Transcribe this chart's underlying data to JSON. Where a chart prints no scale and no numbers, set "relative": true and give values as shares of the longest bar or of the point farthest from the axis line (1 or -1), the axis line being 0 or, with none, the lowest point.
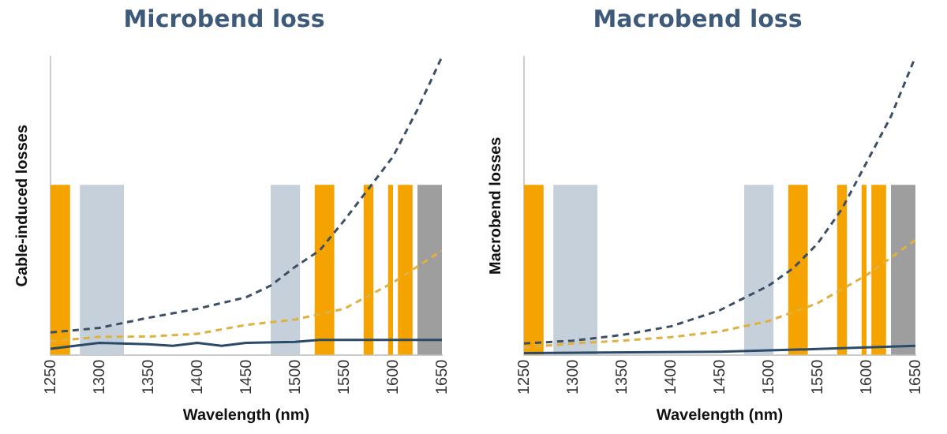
{
  "chart_data": [
    {
      "type": "line",
      "title": "Microbend loss",
      "xlabel": "Wavelength (nm)",
      "ylabel": "Cable-induced losses",
      "relative": true,
      "xlim": [
        1250,
        1650
      ],
      "xticks": [
        1250,
        1300,
        1350,
        1400,
        1450,
        1500,
        1550,
        1600,
        1650
      ],
      "marker": "none",
      "grid": false,
      "legend": false,
      "bands": [
        {
          "axis": "x",
          "from": 1250,
          "to": 1270,
          "color": "#f5a300"
        },
        {
          "axis": "x",
          "from": 1280,
          "to": 1325,
          "color": "#c5d0da"
        },
        {
          "axis": "x",
          "from": 1475,
          "to": 1505,
          "color": "#c5d0da"
        },
        {
          "axis": "x",
          "from": 1520,
          "to": 1540,
          "color": "#f5a300"
        },
        {
          "axis": "x",
          "from": 1570,
          "to": 1580,
          "color": "#f5a300"
        },
        {
          "axis": "x",
          "from": 1595,
          "to": 1600,
          "color": "#f5a300"
        },
        {
          "axis": "x",
          "from": 1605,
          "to": 1620,
          "color": "#f5a300"
        },
        {
          "axis": "x",
          "from": 1625,
          "to": 1650,
          "color": "#9e9e9e"
        }
      ],
      "series": [
        {
          "color": "#3d4f66",
          "line_style": "dashed",
          "x": [
            1250,
            1300,
            1350,
            1400,
            1450,
            1475,
            1500,
            1525,
            1550,
            1575,
            1600,
            1625,
            1650
          ],
          "values": [
            0.075,
            0.09,
            0.124,
            0.154,
            0.193,
            0.232,
            0.295,
            0.35,
            0.45,
            0.557,
            0.665,
            0.823,
            1
          ]
        },
        {
          "color": "#e0b040",
          "line_style": "dashed",
          "x": [
            1250,
            1300,
            1350,
            1400,
            1450,
            1500,
            1550,
            1600,
            1650
          ],
          "values": [
            0.045,
            0.06,
            0.061,
            0.07,
            0.1,
            0.118,
            0.154,
            0.242,
            0.35
          ]
        },
        {
          "color": "#2a4a6a",
          "line_style": "solid",
          "x": [
            1250,
            1300,
            1350,
            1375,
            1400,
            1425,
            1450,
            1500,
            1525,
            1650
          ],
          "values": [
            0.02,
            0.04,
            0.035,
            0.03,
            0.04,
            0.03,
            0.04,
            0.043,
            0.05,
            0.05
          ]
        }
      ]
    },
    {
      "type": "line",
      "title": "Macrobend loss",
      "xlabel": "Wavelength (nm)",
      "ylabel": "Macrobend losses",
      "relative": true,
      "xlim": [
        1250,
        1650
      ],
      "xticks": [
        1250,
        1300,
        1350,
        1400,
        1450,
        1500,
        1550,
        1600,
        1650
      ],
      "marker": "none",
      "grid": false,
      "legend": false,
      "bands": [
        {
          "axis": "x",
          "from": 1250,
          "to": 1270,
          "color": "#f5a300"
        },
        {
          "axis": "x",
          "from": 1280,
          "to": 1325,
          "color": "#c5d0da"
        },
        {
          "axis": "x",
          "from": 1475,
          "to": 1505,
          "color": "#c5d0da"
        },
        {
          "axis": "x",
          "from": 1520,
          "to": 1540,
          "color": "#f5a300"
        },
        {
          "axis": "x",
          "from": 1570,
          "to": 1580,
          "color": "#f5a300"
        },
        {
          "axis": "x",
          "from": 1595,
          "to": 1600,
          "color": "#f5a300"
        },
        {
          "axis": "x",
          "from": 1605,
          "to": 1620,
          "color": "#f5a300"
        },
        {
          "axis": "x",
          "from": 1625,
          "to": 1650,
          "color": "#9e9e9e"
        }
      ],
      "series": [
        {
          "color": "#3d4f66",
          "line_style": "dashed",
          "x": [
            1250,
            1300,
            1350,
            1400,
            1450,
            1500,
            1525,
            1550,
            1575,
            1600,
            1625,
            1650
          ],
          "values": [
            0.038,
            0.047,
            0.066,
            0.095,
            0.149,
            0.232,
            0.29,
            0.373,
            0.49,
            0.645,
            0.8,
            1
          ]
        },
        {
          "color": "#e0b040",
          "line_style": "dashed",
          "x": [
            1250,
            1300,
            1350,
            1400,
            1450,
            1500,
            1550,
            1600,
            1650
          ],
          "values": [
            0.024,
            0.038,
            0.047,
            0.059,
            0.078,
            0.113,
            0.173,
            0.267,
            0.385
          ]
        },
        {
          "color": "#2a4a6a",
          "line_style": "solid",
          "x": [
            1250,
            1450,
            1550,
            1650
          ],
          "values": [
            0.005,
            0.01,
            0.019,
            0.03
          ]
        }
      ]
    }
  ]
}
